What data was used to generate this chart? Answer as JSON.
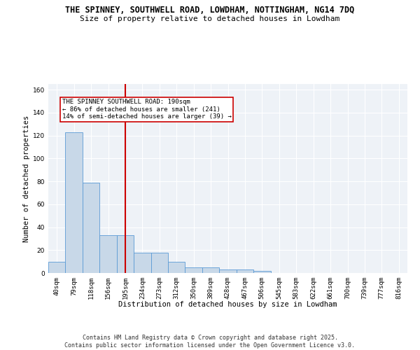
{
  "title_line1": "THE SPINNEY, SOUTHWELL ROAD, LOWDHAM, NOTTINGHAM, NG14 7DQ",
  "title_line2": "Size of property relative to detached houses in Lowdham",
  "xlabel": "Distribution of detached houses by size in Lowdham",
  "ylabel": "Number of detached properties",
  "categories": [
    "40sqm",
    "79sqm",
    "118sqm",
    "156sqm",
    "195sqm",
    "234sqm",
    "273sqm",
    "312sqm",
    "350sqm",
    "389sqm",
    "428sqm",
    "467sqm",
    "506sqm",
    "545sqm",
    "583sqm",
    "622sqm",
    "661sqm",
    "700sqm",
    "739sqm",
    "777sqm",
    "816sqm"
  ],
  "values": [
    10,
    123,
    79,
    33,
    33,
    18,
    18,
    10,
    5,
    5,
    3,
    3,
    2,
    0,
    0,
    0,
    0,
    0,
    0,
    0,
    0
  ],
  "bar_color": "#c8d8e8",
  "bar_edge_color": "#5b9bd5",
  "red_line_index": 4,
  "annotation_text": "THE SPINNEY SOUTHWELL ROAD: 190sqm\n← 86% of detached houses are smaller (241)\n14% of semi-detached houses are larger (39) →",
  "annotation_box_color": "#ffffff",
  "annotation_box_edge": "#cc0000",
  "ylim": [
    0,
    165
  ],
  "yticks": [
    0,
    20,
    40,
    60,
    80,
    100,
    120,
    140,
    160
  ],
  "background_color": "#eef2f7",
  "grid_color": "#ffffff",
  "footer_text": "Contains HM Land Registry data © Crown copyright and database right 2025.\nContains public sector information licensed under the Open Government Licence v3.0.",
  "title_fontsize": 8.5,
  "subtitle_fontsize": 8,
  "axis_label_fontsize": 7.5,
  "tick_fontsize": 6.5,
  "annotation_fontsize": 6.5,
  "footer_fontsize": 6
}
